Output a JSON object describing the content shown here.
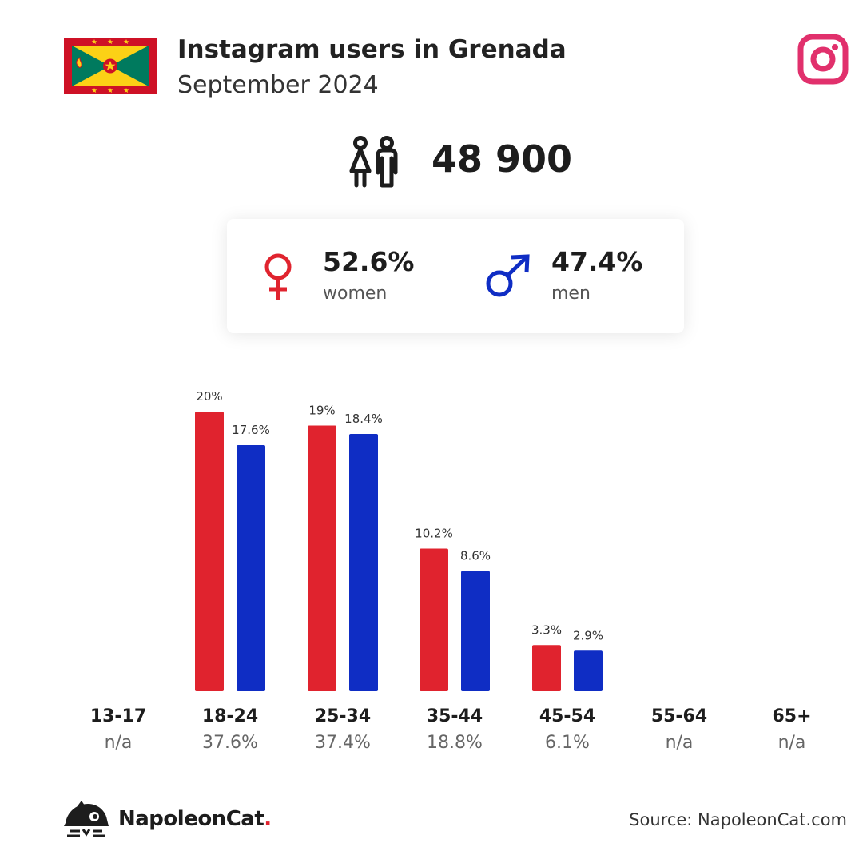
{
  "header": {
    "title": "Instagram users in Grenada",
    "subtitle": "September 2024"
  },
  "total": {
    "value": "48 900"
  },
  "gender": {
    "women": {
      "pct": "52.6%",
      "label": "women",
      "color": "#e0232e"
    },
    "men": {
      "pct": "47.4%",
      "label": "men",
      "color": "#0f2dc4"
    }
  },
  "chart_data": {
    "type": "bar",
    "categories": [
      "13-17",
      "18-24",
      "25-34",
      "35-44",
      "45-54",
      "55-64",
      "65+"
    ],
    "category_totals": [
      "n/a",
      "37.6%",
      "37.4%",
      "18.8%",
      "6.1%",
      "n/a",
      "n/a"
    ],
    "series": [
      {
        "name": "women",
        "color": "#e0232e",
        "values": [
          null,
          20,
          19,
          10.2,
          3.3,
          null,
          null
        ],
        "labels": [
          "",
          "20%",
          "19%",
          "10.2%",
          "3.3%",
          "",
          ""
        ]
      },
      {
        "name": "men",
        "color": "#0f2dc4",
        "values": [
          null,
          17.6,
          18.4,
          8.6,
          2.9,
          null,
          null
        ],
        "labels": [
          "",
          "17.6%",
          "18.4%",
          "8.6%",
          "2.9%",
          "",
          ""
        ]
      }
    ],
    "title": "",
    "xlabel": "",
    "ylabel": "",
    "ylim": [
      0,
      20
    ]
  },
  "footer": {
    "brand": "NapoleonCat",
    "brand_dot": ".",
    "source": "Source: NapoleonCat.com"
  }
}
